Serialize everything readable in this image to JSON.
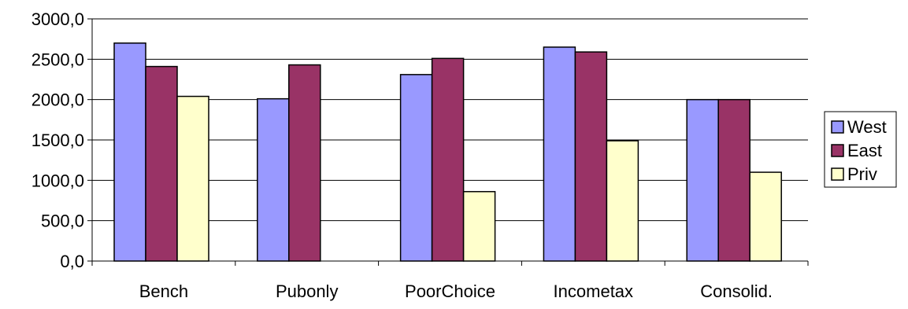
{
  "chart_data": {
    "type": "bar",
    "categories": [
      "Bench",
      "Pubonly",
      "PoorChoice",
      "Incometax",
      "Consolid."
    ],
    "series": [
      {
        "name": "West",
        "values": [
          2700,
          2010,
          2310,
          2650,
          2000
        ],
        "color": "#9999FF"
      },
      {
        "name": "East",
        "values": [
          2410,
          2430,
          2510,
          2590,
          2000
        ],
        "color": "#993366"
      },
      {
        "name": "Priv",
        "values": [
          2040,
          0,
          860,
          1490,
          1100
        ],
        "color": "#FFFFCC"
      }
    ],
    "ylim": [
      0,
      3000
    ],
    "yticks": [
      0,
      500,
      1000,
      1500,
      2000,
      2500,
      3000
    ],
    "ytick_labels": [
      "0,0",
      "500,0",
      "1000,0",
      "1500,0",
      "2000,0",
      "2500,0",
      "3000,0"
    ],
    "grid": true,
    "legend_position": "right"
  }
}
